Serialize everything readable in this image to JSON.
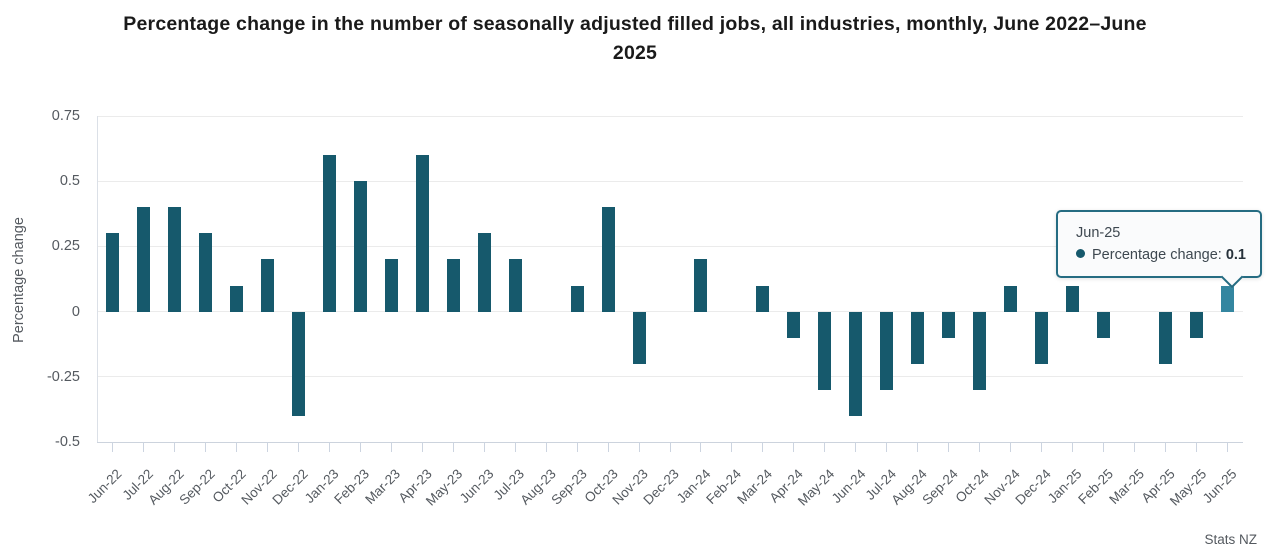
{
  "title_lines": [
    "Percentage change in the number of seasonally adjusted filled jobs, all industries, monthly, June 2022–June",
    "2025"
  ],
  "source": "Stats NZ",
  "colors": {
    "bar": "#16596c",
    "bar_highlight": "#3486a0",
    "tooltip_border": "#256c82",
    "gridline": "#ebebeb",
    "axis_line": "#ccd3dd",
    "label_gray": "#54595f",
    "title_color": "#1a1a1a"
  },
  "tooltip": {
    "title": "Jun-25",
    "series_label": "Percentage change: ",
    "value": "0.1"
  },
  "chart_data": {
    "type": "bar",
    "title": "Percentage change in the number of seasonally adjusted filled jobs, all industries, monthly, June 2022–June 2025",
    "xlabel": "",
    "ylabel": "Percentage change",
    "ylim": [
      -0.5,
      0.75
    ],
    "yticks": [
      0.75,
      0.5,
      0.25,
      0,
      -0.25,
      -0.5
    ],
    "ytick_labels": [
      "0.75",
      "0.5",
      "0.25",
      "0",
      "-0.25",
      "-0.5"
    ],
    "grid": true,
    "legend": false,
    "categories": [
      "Jun-22",
      "Jul-22",
      "Aug-22",
      "Sep-22",
      "Oct-22",
      "Nov-22",
      "Dec-22",
      "Jan-23",
      "Feb-23",
      "Mar-23",
      "Apr-23",
      "May-23",
      "Jun-23",
      "Jul-23",
      "Aug-23",
      "Sep-23",
      "Oct-23",
      "Nov-23",
      "Dec-23",
      "Jan-24",
      "Feb-24",
      "Mar-24",
      "Apr-24",
      "May-24",
      "Jun-24",
      "Jul-24",
      "Aug-24",
      "Sep-24",
      "Oct-24",
      "Nov-24",
      "Dec-24",
      "Jan-25",
      "Feb-25",
      "Mar-25",
      "Apr-25",
      "May-25",
      "Jun-25"
    ],
    "values": [
      0.3,
      0.4,
      0.4,
      0.3,
      0.1,
      0.2,
      -0.4,
      0.6,
      0.5,
      0.2,
      0.6,
      0.2,
      0.3,
      0.2,
      0,
      0.1,
      0.4,
      -0.2,
      0,
      0.2,
      0,
      0.1,
      -0.1,
      -0.3,
      -0.4,
      -0.3,
      -0.2,
      -0.1,
      -0.3,
      0.1,
      -0.2,
      0.1,
      -0.1,
      0,
      -0.2,
      -0.1,
      0.1
    ],
    "highlighted_category": "Jun-25"
  }
}
